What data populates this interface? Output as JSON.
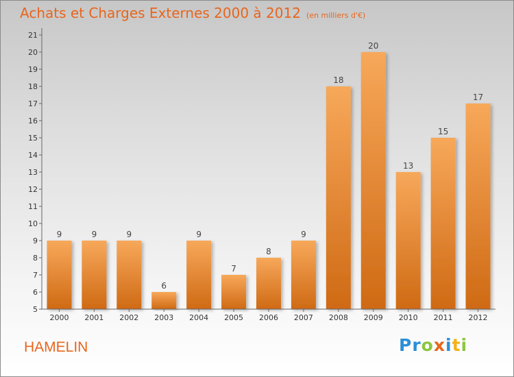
{
  "title": "Achats et Charges Externes 2000 à 2012",
  "subtitle": "(en milliers d'€)",
  "commune": "HAMELIN",
  "logo": {
    "text": "Proxiti",
    "letters": [
      {
        "char": "P",
        "color": "#2b8fd6"
      },
      {
        "char": "r",
        "color": "#2b8fd6"
      },
      {
        "char": "o",
        "color": "#8cc63f"
      },
      {
        "char": "x",
        "color": "#e8651c"
      },
      {
        "char": "i",
        "color": "#2b8fd6"
      },
      {
        "char": "t",
        "color": "#f2b21b"
      },
      {
        "char": "i",
        "color": "#8cc63f"
      }
    ]
  },
  "colors": {
    "accent": "#e8651c",
    "bar_top": "#f7a85a",
    "bar_bottom": "#cf6a14"
  },
  "chart_data": {
    "type": "bar",
    "categories": [
      "2000",
      "2001",
      "2002",
      "2003",
      "2004",
      "2005",
      "2006",
      "2007",
      "2008",
      "2009",
      "2010",
      "2011",
      "2012"
    ],
    "values": [
      9,
      9,
      9,
      6,
      9,
      7,
      8,
      9,
      18,
      20,
      13,
      15,
      17
    ],
    "title": "Achats et Charges Externes 2000 à 2012",
    "subtitle": "(en milliers d'€)",
    "ylim": [
      5,
      21
    ],
    "yticks": [
      5,
      6,
      7,
      8,
      9,
      10,
      11,
      12,
      13,
      14,
      15,
      16,
      17,
      18,
      19,
      20,
      21
    ],
    "grid": false,
    "legend": "none"
  }
}
